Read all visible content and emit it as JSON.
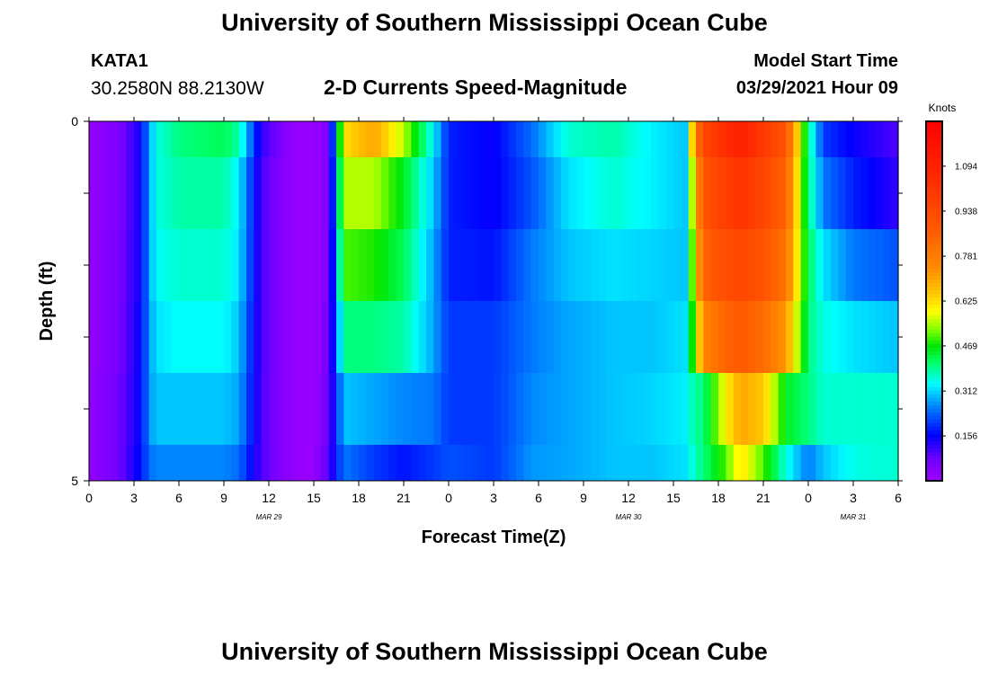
{
  "header": {
    "title": "University of Southern Mississippi Ocean Cube",
    "station_id": "KATA1",
    "coordinates": "30.2580N  88.2130W",
    "plot_title": "2-D Currents Speed-Magnitude",
    "model_start_label": "Model Start Time",
    "model_start_value": "03/29/2021 Hour 09"
  },
  "footer": {
    "title": "University of Southern Mississippi Ocean Cube"
  },
  "chart_data": {
    "type": "heatmap",
    "title": "2-D Currents Speed-Magnitude",
    "xlabel": "Forecast Time(Z)",
    "ylabel": "Depth (ft)",
    "x_start_hour": 0,
    "x_end_hour": 54,
    "x_ticks": [
      "0",
      "3",
      "6",
      "9",
      "12",
      "15",
      "18",
      "21",
      "0",
      "3",
      "6",
      "9",
      "12",
      "15",
      "18",
      "21",
      "0",
      "3",
      "6"
    ],
    "date_labels": [
      {
        "hour": 12,
        "label": "MAR 29"
      },
      {
        "hour": 36,
        "label": "MAR 30"
      },
      {
        "hour": 51,
        "label": "MAR 31"
      }
    ],
    "y_ticks": [
      "0",
      "5"
    ],
    "ylim": [
      0,
      5
    ],
    "colorbar": {
      "units": "Knots",
      "min": 0.0,
      "max": 1.25,
      "tick_labels": [
        "0.156",
        "0.312",
        "0.469",
        "0.625",
        "0.781",
        "0.938",
        "1.094"
      ],
      "tick_values": [
        0.156,
        0.312,
        0.469,
        0.625,
        0.781,
        0.938,
        1.094
      ]
    },
    "depth_bands": [
      0,
      0.5,
      1.5,
      2.5,
      3.5,
      4.5,
      5
    ],
    "keyframe_hours": [
      0,
      2,
      3.5,
      4,
      4.5,
      6,
      9,
      10,
      11.5,
      13.5,
      15,
      16,
      17,
      19,
      21,
      23,
      24,
      27,
      29.5,
      32,
      35,
      37.5,
      40,
      40.3,
      41,
      42.5,
      43.5,
      45,
      46.5,
      48,
      49,
      51,
      54
    ],
    "speed_rows": [
      [
        0.02,
        0.05,
        0.15,
        0.28,
        0.35,
        0.4,
        0.42,
        0.38,
        0.12,
        0.02,
        0.01,
        0.05,
        0.62,
        0.7,
        0.55,
        0.33,
        0.18,
        0.15,
        0.24,
        0.36,
        0.38,
        0.33,
        0.3,
        0.7,
        0.95,
        1.05,
        1.1,
        1.0,
        0.9,
        0.4,
        0.2,
        0.15,
        0.1
      ],
      [
        0.02,
        0.05,
        0.15,
        0.28,
        0.35,
        0.38,
        0.38,
        0.33,
        0.1,
        0.02,
        0.01,
        0.05,
        0.55,
        0.55,
        0.45,
        0.3,
        0.18,
        0.15,
        0.22,
        0.32,
        0.36,
        0.33,
        0.3,
        0.6,
        0.9,
        0.98,
        1.02,
        0.95,
        0.85,
        0.4,
        0.25,
        0.18,
        0.12
      ],
      [
        0.02,
        0.06,
        0.15,
        0.28,
        0.34,
        0.36,
        0.36,
        0.32,
        0.1,
        0.02,
        0.01,
        0.05,
        0.5,
        0.48,
        0.42,
        0.28,
        0.18,
        0.17,
        0.25,
        0.3,
        0.32,
        0.31,
        0.3,
        0.55,
        0.85,
        0.92,
        0.95,
        0.9,
        0.8,
        0.42,
        0.32,
        0.25,
        0.22
      ],
      [
        0.02,
        0.06,
        0.16,
        0.27,
        0.32,
        0.34,
        0.34,
        0.3,
        0.1,
        0.02,
        0.01,
        0.06,
        0.4,
        0.4,
        0.38,
        0.28,
        0.2,
        0.2,
        0.25,
        0.28,
        0.3,
        0.3,
        0.32,
        0.5,
        0.75,
        0.85,
        0.88,
        0.82,
        0.72,
        0.4,
        0.35,
        0.32,
        0.3
      ],
      [
        0.02,
        0.07,
        0.16,
        0.27,
        0.3,
        0.3,
        0.3,
        0.28,
        0.1,
        0.02,
        0.01,
        0.08,
        0.3,
        0.28,
        0.26,
        0.25,
        0.2,
        0.2,
        0.26,
        0.28,
        0.3,
        0.31,
        0.33,
        0.38,
        0.4,
        0.6,
        0.7,
        0.65,
        0.45,
        0.4,
        0.36,
        0.36,
        0.36
      ],
      [
        0.02,
        0.07,
        0.17,
        0.24,
        0.26,
        0.26,
        0.26,
        0.24,
        0.1,
        0.02,
        0.01,
        0.1,
        0.25,
        0.2,
        0.17,
        0.2,
        0.22,
        0.2,
        0.27,
        0.28,
        0.3,
        0.3,
        0.32,
        0.36,
        0.4,
        0.5,
        0.62,
        0.5,
        0.35,
        0.25,
        0.3,
        0.35,
        0.36
      ]
    ]
  }
}
